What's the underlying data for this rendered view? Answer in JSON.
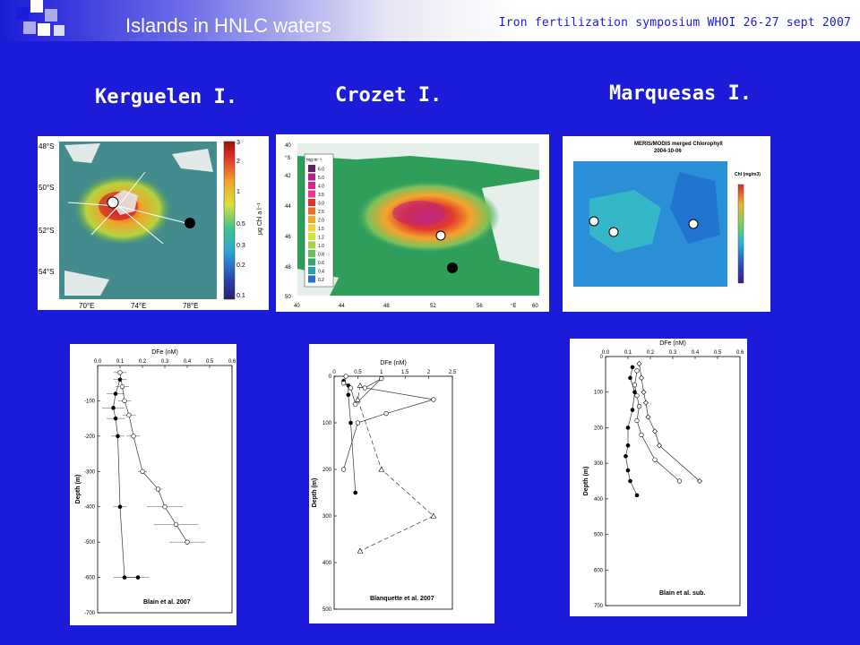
{
  "header": {
    "title": "Islands in HNLC waters",
    "conference": "Iron fertilization symposium WHOI 26-27 sept 2007"
  },
  "islands": [
    {
      "name": "Kerguelen I."
    },
    {
      "name": "Crozet I."
    },
    {
      "name": "Marquesas I."
    }
  ],
  "maps": {
    "kerguelen": {
      "lat_labels": [
        "48°S",
        "50°S",
        "52°S",
        "54°S"
      ],
      "lon_labels": [
        "70°E",
        "74°E",
        "78°E"
      ],
      "colorbar_ticks": [
        "3",
        "2",
        "1",
        "0.5",
        "0.3",
        "0.2",
        "0.1"
      ],
      "colorbar_label": "µg Chl a l⁻¹"
    },
    "crozet": {
      "lat_labels": [
        "40",
        "42",
        "44",
        "46",
        "48",
        "50"
      ],
      "lat_unit": "°S",
      "lon_labels": [
        "40",
        "44",
        "48",
        "52",
        "56",
        "60"
      ],
      "lon_unit": "°E",
      "legend_unit": "mg m⁻³",
      "legend_values": [
        "6.0",
        "5.0",
        "4.0",
        "3.5",
        "3.0",
        "2.5",
        "2.0",
        "1.5",
        "1.2",
        "1.0",
        "0.8",
        "0.6",
        "0.4",
        "0.2"
      ]
    },
    "marquesas": {
      "title": "MERIS/MODIS merged Chlorophyll",
      "date": "2004-10-06",
      "colorbar_label": "Chl (mg/m3)"
    }
  },
  "chart_data": [
    {
      "type": "line",
      "xlabel": "DFe (nM)",
      "ylabel": "Depth (m)",
      "xlim": [
        0,
        0.6
      ],
      "ylim": [
        -700,
        0
      ],
      "x_ticks": [
        "0.0",
        "0.1",
        "0.2",
        "0.3",
        "0.4",
        "0.5",
        "0.6"
      ],
      "y_ticks": [
        "-100",
        "-200",
        "-300",
        "-400",
        "-500",
        "-600",
        "-700"
      ],
      "annotation": "Blain et al. 2007",
      "series": [
        {
          "style": "filled-circle",
          "x": [
            0.1,
            0.08,
            0.07,
            0.08,
            0.09,
            0.1,
            0.12,
            0.18
          ],
          "y": [
            -40,
            -80,
            -120,
            -150,
            -200,
            -400,
            -600,
            -600
          ],
          "xerr": [
            0.03,
            0.04,
            0.05,
            0.04,
            0.03,
            0.03,
            0.05,
            0.05
          ]
        },
        {
          "style": "open-circle",
          "x": [
            0.1,
            0.11,
            0.12,
            0.14,
            0.16,
            0.2,
            0.27,
            0.3,
            0.35,
            0.4
          ],
          "y": [
            -20,
            -60,
            -100,
            -140,
            -200,
            -300,
            -350,
            -400,
            -450,
            -500
          ],
          "xerr": [
            0.03,
            0.03,
            0.03,
            0.03,
            0.03,
            0.02,
            0.02,
            0.08,
            0.1,
            0.08
          ]
        }
      ]
    },
    {
      "type": "line",
      "xlabel": "DFe (nM)",
      "ylabel": "Depth (m)",
      "xlim": [
        0,
        2.5
      ],
      "ylim": [
        0,
        500
      ],
      "x_ticks": [
        "0",
        "0.5",
        "1",
        "1.5",
        "2",
        "2.5"
      ],
      "y_ticks": [
        "0",
        "100",
        "200",
        "300",
        "400",
        "500"
      ],
      "annotation": "Blanquette et al. 2007",
      "series": [
        {
          "style": "filled-circle",
          "x": [
            0.2,
            0.3,
            0.3,
            0.35,
            0.45
          ],
          "y": [
            10,
            20,
            40,
            100,
            250
          ]
        },
        {
          "style": "open-circle",
          "x": [
            0.25,
            0.2,
            0.35,
            0.45,
            1.0,
            0.65,
            2.1,
            1.1,
            0.5,
            0.2
          ],
          "y": [
            0,
            15,
            25,
            60,
            5,
            25,
            50,
            80,
            100,
            200
          ]
        },
        {
          "style": "open-triangle",
          "x": [
            0.55,
            0.5,
            1.0,
            2.1,
            0.55
          ],
          "y": [
            20,
            50,
            200,
            300,
            375
          ]
        }
      ]
    },
    {
      "type": "line",
      "xlabel": "DFe (nM)",
      "ylabel": "Depth (m)",
      "xlim": [
        0,
        0.6
      ],
      "ylim": [
        0,
        700
      ],
      "x_ticks": [
        "0.0",
        "0.1",
        "0.2",
        "0.3",
        "0.4",
        "0.5",
        "0.6"
      ],
      "y_ticks": [
        "0",
        "100",
        "200",
        "300",
        "400",
        "500",
        "600",
        "700"
      ],
      "annotation": "Blain et al. sub.",
      "series": [
        {
          "style": "filled-circle",
          "x": [
            0.12,
            0.11,
            0.13,
            0.12,
            0.1,
            0.1,
            0.09,
            0.1,
            0.11,
            0.14
          ],
          "y": [
            30,
            60,
            100,
            150,
            200,
            250,
            280,
            320,
            350,
            390
          ]
        },
        {
          "style": "open-circle",
          "x": [
            0.14,
            0.13,
            0.14,
            0.15,
            0.14,
            0.16,
            0.22,
            0.33
          ],
          "y": [
            40,
            80,
            110,
            140,
            180,
            220,
            290,
            350
          ]
        },
        {
          "style": "open-diamond",
          "x": [
            0.15,
            0.16,
            0.17,
            0.18,
            0.19,
            0.22,
            0.24,
            0.42
          ],
          "y": [
            20,
            60,
            100,
            130,
            170,
            210,
            250,
            350
          ]
        }
      ]
    }
  ],
  "colors": {
    "background": "#1b1bd8",
    "title_text": "#ffffff",
    "conference_text": "#1b1bd8"
  }
}
